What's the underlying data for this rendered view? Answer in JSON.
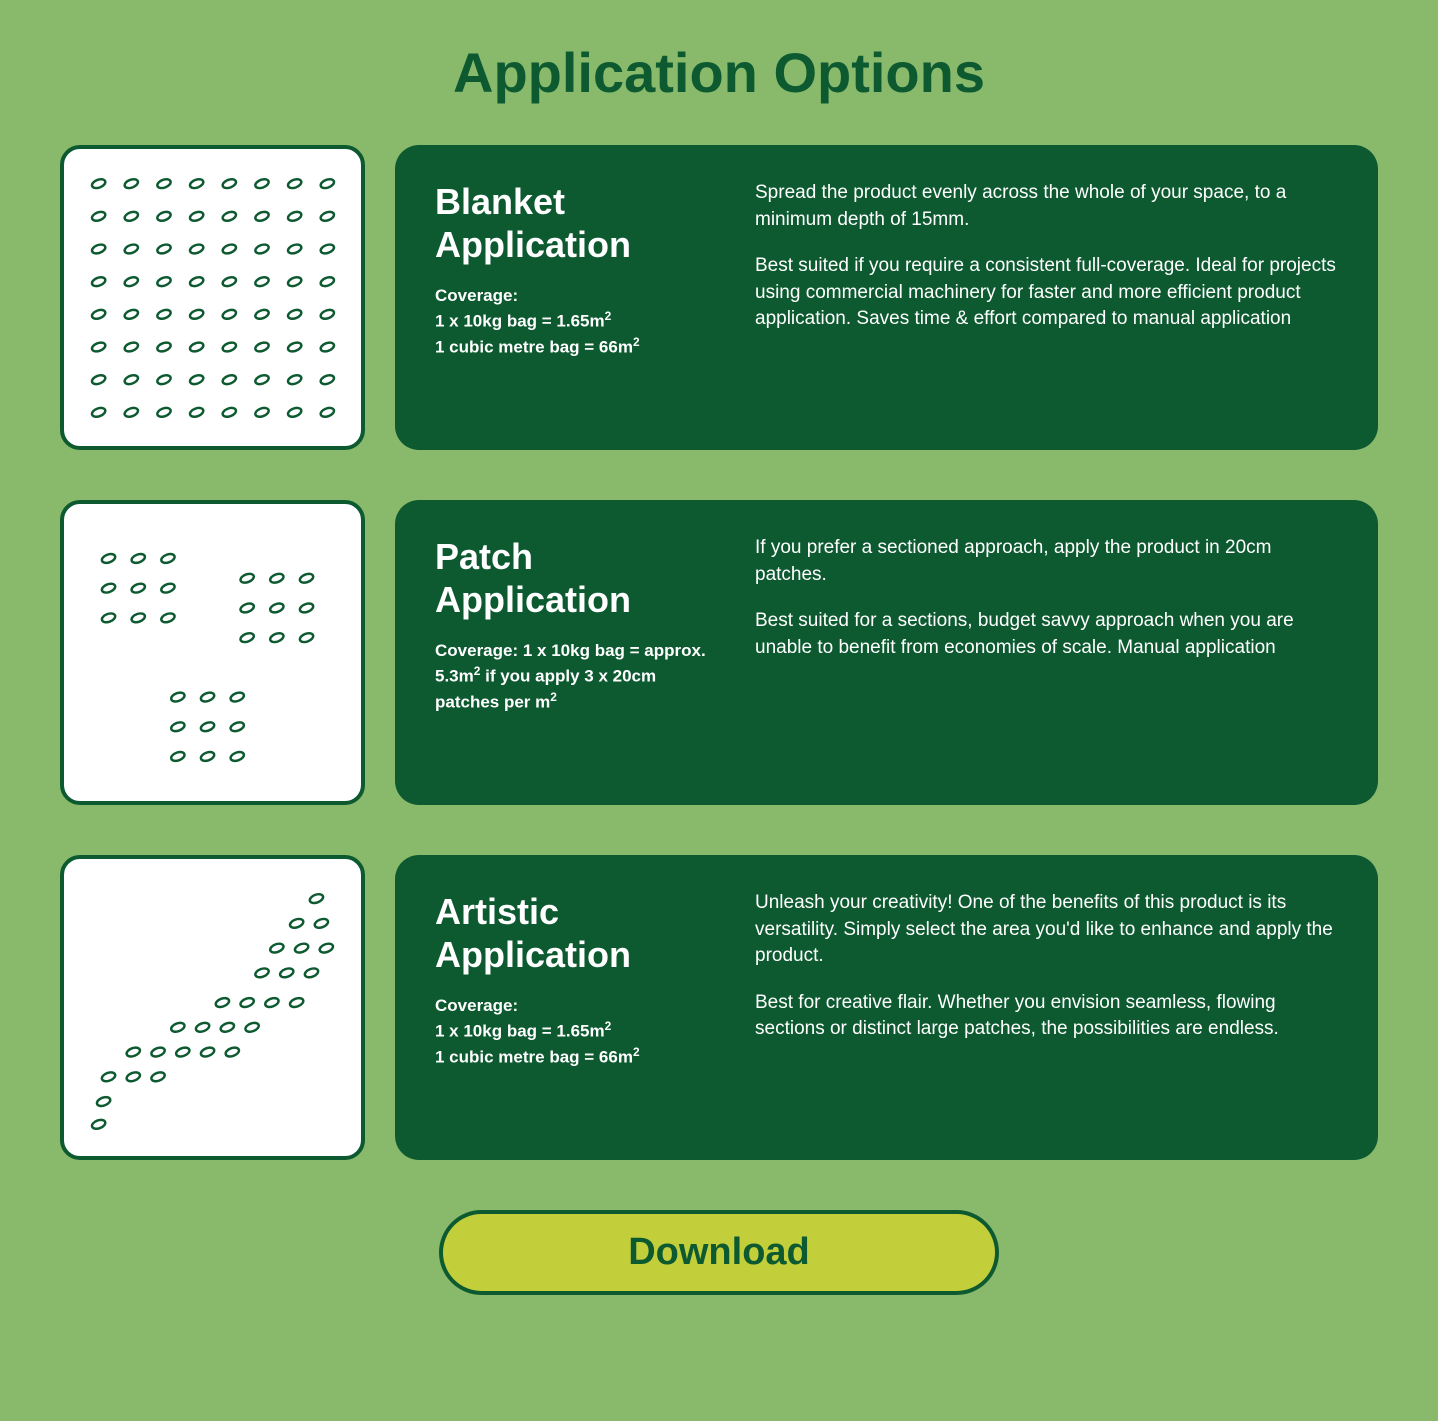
{
  "page": {
    "title": "Application Options",
    "background_color": "#89b96a",
    "title_color": "#0d5a31",
    "card_bg_color": "#0d5a31",
    "icon_border_color": "#0d5a31",
    "icon_bg_color": "#ffffff",
    "text_color": "#ffffff",
    "download_bg_color": "#c3cf3a",
    "download_text_color": "#0d5a31"
  },
  "options": [
    {
      "id": "blanket",
      "title": "Blanket Application",
      "coverage_label": "Coverage:",
      "coverage_line1": "1 x 10kg bag = 1.65m²",
      "coverage_line2": "1 cubic metre bag = 66m²",
      "desc1": "Spread the product evenly across the whole of your space, to a minimum depth of 15mm.",
      "desc2": "Best suited if you require a consistent full-coverage. Ideal for projects using commercial machinery for faster and more efficient product application. Saves time & effort compared to manual application",
      "pattern": "full-grid"
    },
    {
      "id": "patch",
      "title": "Patch Application",
      "coverage_label": "Coverage: 1 x 10kg bag = approx. 5.3m² if you apply 3 x 20cm patches per m²",
      "coverage_line1": "",
      "coverage_line2": "",
      "desc1": "If you prefer a sectioned approach, apply the product in 20cm patches.",
      "desc2": "Best suited for a sections, budget savvy approach when you are unable to benefit from economies of scale. Manual application",
      "pattern": "patches"
    },
    {
      "id": "artistic",
      "title": "Artistic Application",
      "coverage_label": "Coverage:",
      "coverage_line1": "1 x 10kg bag = 1.65m²",
      "coverage_line2": "1 cubic metre bag = 66m²",
      "desc1": "Unleash your creativity! One of the benefits of this product is its versatility. Simply select the area you'd like to enhance and apply the product.",
      "desc2": "Best for creative flair. Whether you envision seamless, flowing sections or distinct large patches, the possibilities are endless.",
      "pattern": "artistic"
    }
  ],
  "download": {
    "label": "Download"
  },
  "seed": {
    "color": "#0d5a31",
    "rx": 7,
    "ry": 4,
    "rotation": -20
  }
}
